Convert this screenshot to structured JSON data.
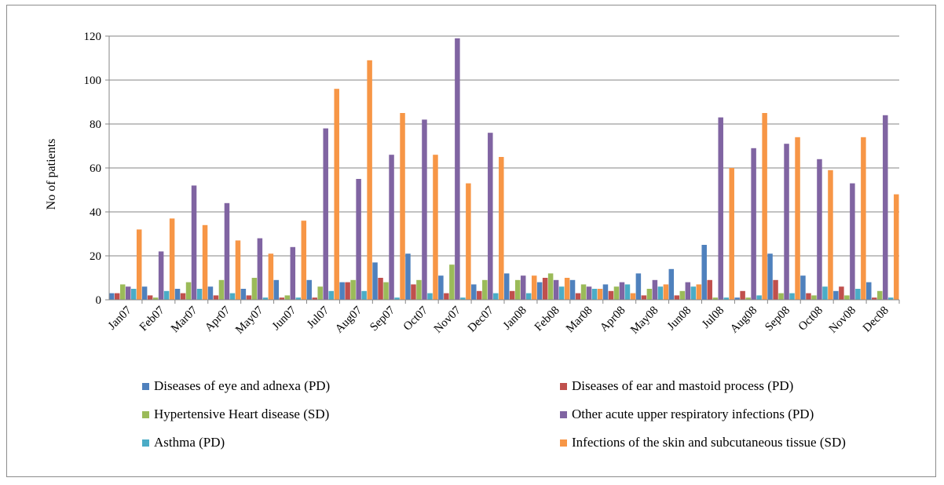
{
  "chart_data": {
    "type": "bar",
    "ylabel": "No of patients",
    "xlabel": "",
    "ylim": [
      0,
      120
    ],
    "yticks": [
      0,
      20,
      40,
      60,
      80,
      100,
      120
    ],
    "grid": true,
    "legend_position": "bottom",
    "categories": [
      "Jan07",
      "Feb07",
      "Mar07",
      "Apr07",
      "May07",
      "Jun07",
      "Jul07",
      "Aug07",
      "Sep07",
      "Oct07",
      "Nov07",
      "Dec07",
      "Jan08",
      "Feb08",
      "Mar08",
      "Apr08",
      "May08",
      "Jun08",
      "Jul08",
      "Aug08",
      "Sep08",
      "Oct08",
      "Nov08",
      "Dec08"
    ],
    "series": [
      {
        "name": "Diseases of eye and adnexa (PD)",
        "color": "#4F81BD",
        "values": [
          3,
          6,
          5,
          6,
          5,
          9,
          9,
          8,
          17,
          21,
          11,
          7,
          12,
          8,
          9,
          7,
          12,
          14,
          25,
          1,
          21,
          11,
          4,
          8
        ]
      },
      {
        "name": "Diseases of ear and mastoid process (PD)",
        "color": "#C0504D",
        "values": [
          3,
          2,
          3,
          2,
          2,
          1,
          1,
          8,
          10,
          7,
          3,
          4,
          4,
          10,
          3,
          4,
          2,
          2,
          9,
          4,
          9,
          3,
          6,
          1
        ]
      },
      {
        "name": "Hypertensive Heart disease (SD)",
        "color": "#9BBB59",
        "values": [
          7,
          1,
          8,
          9,
          10,
          2,
          6,
          9,
          8,
          9,
          16,
          9,
          9,
          12,
          7,
          6,
          5,
          4,
          1,
          1,
          3,
          2,
          2,
          4
        ]
      },
      {
        "name": "Other acute upper respiratory infections (PD)",
        "color": "#8064A2",
        "values": [
          6,
          22,
          52,
          44,
          28,
          24,
          78,
          55,
          66,
          82,
          119,
          76,
          11,
          9,
          6,
          8,
          9,
          8,
          83,
          69,
          71,
          64,
          53,
          84
        ]
      },
      {
        "name": "Asthma (PD)",
        "color": "#4BACC6",
        "values": [
          5,
          4,
          5,
          3,
          1,
          1,
          4,
          4,
          1,
          3,
          1,
          3,
          3,
          6,
          5,
          7,
          6,
          6,
          1,
          2,
          3,
          6,
          5,
          1
        ]
      },
      {
        "name": "Infections of the skin and subcutaneous tissue (SD)",
        "color": "#F79646",
        "values": [
          32,
          37,
          34,
          27,
          21,
          36,
          96,
          109,
          85,
          66,
          53,
          65,
          11,
          10,
          5,
          3,
          7,
          7,
          60,
          85,
          74,
          59,
          74,
          48
        ]
      }
    ]
  }
}
